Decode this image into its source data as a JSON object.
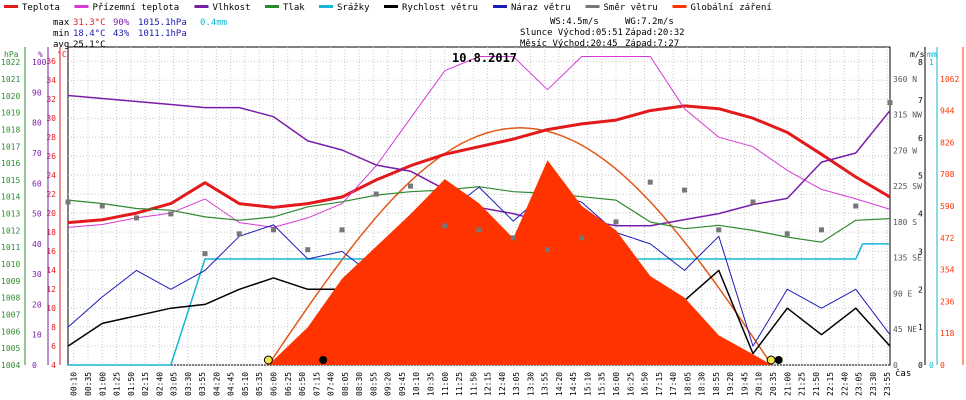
{
  "legend": [
    {
      "label": "Teplota",
      "color": "#e31a1c"
    },
    {
      "label": "Přízemní teplota",
      "color": "#d63ad6"
    },
    {
      "label": "Vlhkost",
      "color": "#7a1ea8"
    },
    {
      "label": "Tlak",
      "color": "#2f8a2f"
    },
    {
      "label": "Srážky",
      "color": "#17b5d6"
    },
    {
      "label": "Rychlost větru",
      "color": "#000000"
    },
    {
      "label": "Náraz větru",
      "color": "#1c1cb8"
    },
    {
      "label": "Směr větru",
      "color": "#777777"
    },
    {
      "label": "Globální záření",
      "color": "#ff3300"
    }
  ],
  "stats": {
    "max_label": "max",
    "max_temp": "31.3°C",
    "max_hum": "90%",
    "max_press": "1015.1hPa",
    "max_rain": "0.4mm",
    "min_label": "min",
    "min_temp": "18.4°C",
    "min_hum": "43%",
    "min_press": "1011.1hPa",
    "avg_label": "avg",
    "avg_temp": "25.1°C"
  },
  "info": {
    "ws": "WS:4.5m/s",
    "wg": "WG:7.2m/s",
    "sun": "Slunce Východ:05:51",
    "sunset": "Západ:20:32",
    "moon": "Měsíc Východ:20:45",
    "moonset": "Západ:7:27"
  },
  "date": "10.8.2017",
  "axis_units": {
    "hpa": "hPa",
    "pct": "%",
    "degc": "°C",
    "ms": "m/s",
    "mm": "mm",
    "time": "čas"
  },
  "chart_data": {
    "type": "line",
    "title": "10.8.2017",
    "x_ticks": [
      "00:10",
      "00:35",
      "01:00",
      "01:25",
      "01:50",
      "02:15",
      "02:40",
      "03:05",
      "03:30",
      "03:55",
      "04:20",
      "04:45",
      "05:10",
      "05:35",
      "06:00",
      "06:25",
      "06:50",
      "07:15",
      "07:40",
      "08:05",
      "08:30",
      "08:55",
      "09:20",
      "09:45",
      "10:10",
      "10:35",
      "11:00",
      "11:25",
      "11:50",
      "12:15",
      "12:40",
      "13:05",
      "13:30",
      "13:55",
      "14:20",
      "14:45",
      "15:10",
      "15:35",
      "16:00",
      "16:25",
      "16:50",
      "17:15",
      "17:40",
      "18:05",
      "18:30",
      "18:55",
      "19:20",
      "19:45",
      "20:10",
      "20:35",
      "21:00",
      "21:25",
      "21:50",
      "22:15",
      "22:40",
      "23:05",
      "23:30",
      "23:55"
    ],
    "axes": {
      "pressure_hpa": {
        "ticks": [
          1004,
          1005,
          1006,
          1007,
          1008,
          1009,
          1010,
          1011,
          1012,
          1013,
          1014,
          1015,
          1016,
          1017,
          1018,
          1019,
          1020,
          1021,
          1022
        ]
      },
      "humidity_pct": {
        "ticks": [
          0,
          10,
          20,
          30,
          40,
          50,
          60,
          70,
          80,
          90,
          100
        ]
      },
      "temperature_c": {
        "ticks": [
          4,
          6,
          8,
          10,
          12,
          14,
          16,
          18,
          20,
          22,
          24,
          26,
          28,
          30,
          32,
          34,
          36
        ]
      },
      "wind_dir_deg": {
        "ticks": [
          "0",
          "45 NE",
          "90 E",
          "135 SE",
          "180 S",
          "225 SW",
          "270 W",
          "315 NW",
          "360 N"
        ]
      },
      "wind_ms": {
        "ticks": [
          0,
          1,
          2,
          3,
          4,
          5,
          6,
          7,
          8
        ]
      },
      "rain_mm": {
        "ticks": [
          0,
          1
        ]
      },
      "radiation_wm2": {
        "ticks": [
          0,
          118,
          236,
          354,
          472,
          590,
          708,
          826,
          944,
          1062
        ]
      }
    },
    "series": [
      {
        "name": "Teplota",
        "unit": "°C",
        "color": "#e31a1c",
        "x": [
          0,
          1,
          2,
          3,
          4,
          5,
          6,
          7,
          8,
          9,
          10,
          11,
          12,
          13,
          14,
          15,
          16,
          17,
          18,
          19,
          20,
          21,
          22,
          23,
          24
        ],
        "y": [
          19.0,
          19.3,
          20.0,
          21.0,
          23.2,
          21.0,
          20.6,
          21.0,
          21.7,
          23.5,
          25.0,
          26.2,
          27.0,
          27.8,
          28.8,
          29.4,
          29.8,
          30.8,
          31.3,
          31.0,
          30.0,
          28.5,
          26.2,
          23.8,
          21.7
        ]
      },
      {
        "name": "Přízemní teplota",
        "unit": "°C",
        "color": "#d63ad6",
        "x": [
          0,
          1,
          2,
          3,
          4,
          5,
          6,
          7,
          8,
          9,
          10,
          11,
          12,
          13,
          14,
          15,
          16,
          17,
          18,
          19,
          20,
          21,
          22,
          23,
          24
        ],
        "y": [
          18.5,
          18.8,
          19.5,
          20.0,
          21.5,
          19.0,
          18.5,
          19.5,
          21.0,
          25.0,
          30.0,
          35.0,
          36.5,
          36.5,
          33.0,
          36.5,
          36.5,
          36.5,
          31.0,
          28.0,
          27.0,
          24.5,
          22.5,
          21.5,
          20.4
        ]
      },
      {
        "name": "Vlhkost",
        "unit": "%",
        "color": "#7a1ea8",
        "x": [
          0,
          1,
          2,
          3,
          4,
          5,
          6,
          7,
          8,
          9,
          10,
          11,
          12,
          13,
          14,
          15,
          16,
          17,
          18,
          19,
          20,
          21,
          22,
          23,
          24
        ],
        "y": [
          89,
          88,
          87,
          86,
          85,
          85,
          82,
          74,
          71,
          66,
          64,
          58,
          52,
          50,
          47,
          48,
          46,
          46,
          48,
          50,
          53,
          55,
          67,
          70,
          84
        ]
      },
      {
        "name": "Tlak",
        "unit": "hPa",
        "color": "#2f8a2f",
        "x": [
          0,
          1,
          2,
          3,
          4,
          5,
          6,
          7,
          8,
          9,
          10,
          11,
          12,
          13,
          14,
          15,
          16,
          17,
          18,
          19,
          20,
          21,
          22,
          23,
          24
        ],
        "y": [
          1013.8,
          1013.6,
          1013.3,
          1013.2,
          1012.8,
          1012.6,
          1012.8,
          1013.4,
          1013.7,
          1014.1,
          1014.3,
          1014.4,
          1014.6,
          1014.3,
          1014.2,
          1014.0,
          1013.8,
          1012.5,
          1012.1,
          1012.3,
          1012.0,
          1011.6,
          1011.3,
          1012.6,
          1012.7
        ]
      },
      {
        "name": "Srážky",
        "unit": "mm",
        "color": "#17b5d6",
        "x": [
          0,
          1,
          2,
          3,
          4,
          5,
          6,
          7,
          8,
          9,
          10,
          11,
          12,
          13,
          14,
          15,
          16,
          17,
          18,
          19,
          20,
          21,
          22,
          23,
          23.2,
          24
        ],
        "y": [
          0,
          0,
          0,
          0,
          0.35,
          0.35,
          0.35,
          0.35,
          0.35,
          0.35,
          0.35,
          0.35,
          0.35,
          0.35,
          0.35,
          0.35,
          0.35,
          0.35,
          0.35,
          0.35,
          0.35,
          0.35,
          0.35,
          0.35,
          0.4,
          0.4
        ]
      },
      {
        "name": "Rychlost větru",
        "unit": "m/s",
        "color": "#000000",
        "x": [
          0,
          1,
          2,
          3,
          4,
          5,
          6,
          7,
          8,
          9,
          10,
          11,
          12,
          13,
          14,
          15,
          16,
          17,
          18,
          19,
          20,
          21,
          22,
          23,
          24
        ],
        "y": [
          0.5,
          1.1,
          1.3,
          1.5,
          1.6,
          2.0,
          2.3,
          2.0,
          2.0,
          1.5,
          2.5,
          2.7,
          3.3,
          2.6,
          3.5,
          3.7,
          2.6,
          2.3,
          1.7,
          2.5,
          0.3,
          1.5,
          0.8,
          1.5,
          0.5
        ]
      },
      {
        "name": "Náraz větru",
        "unit": "m/s",
        "color": "#1c1cb8",
        "x": [
          0,
          1,
          2,
          3,
          4,
          5,
          6,
          7,
          8,
          9,
          10,
          11,
          12,
          13,
          14,
          15,
          16,
          17,
          18,
          19,
          20,
          21,
          22,
          23,
          24
        ],
        "y": [
          1.0,
          1.8,
          2.5,
          2.0,
          2.5,
          3.4,
          3.7,
          2.8,
          3.0,
          2.3,
          3.3,
          4.0,
          4.7,
          3.8,
          4.6,
          4.3,
          3.5,
          3.2,
          2.5,
          3.4,
          0.5,
          2.0,
          1.5,
          2.0,
          0.8
        ]
      },
      {
        "name": "Globální záření",
        "unit": "W/m²",
        "color": "#ff3300",
        "x": [
          5.85,
          7,
          8,
          9,
          10,
          11,
          12,
          13,
          14,
          15,
          16,
          17,
          18,
          19,
          20,
          20.55
        ],
        "y": [
          0,
          140,
          320,
          440,
          560,
          690,
          600,
          470,
          760,
          590,
          500,
          330,
          250,
          110,
          40,
          0
        ]
      },
      {
        "name": "Směr větru",
        "unit": "°",
        "color": "#777777",
        "x": [
          0,
          1,
          2,
          3,
          4,
          5,
          6,
          7,
          8,
          9,
          10,
          11,
          12,
          13,
          14,
          15,
          16,
          17,
          18,
          19,
          20,
          21,
          22,
          23,
          24
        ],
        "y": [
          205,
          200,
          185,
          190,
          140,
          165,
          170,
          145,
          170,
          215,
          225,
          175,
          170,
          160,
          145,
          160,
          180,
          230,
          220,
          170,
          205,
          165,
          170,
          200,
          330
        ]
      }
    ]
  }
}
